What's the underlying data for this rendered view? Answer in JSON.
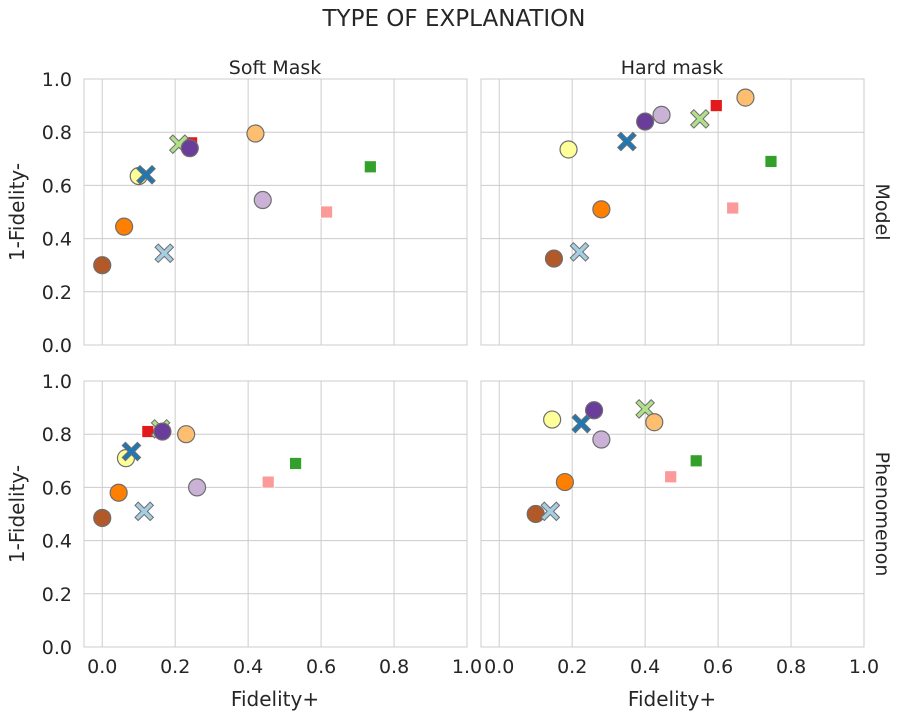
{
  "figure": {
    "title": "TYPE OF EXPLANATION",
    "col_titles": [
      "Soft Mask",
      "Hard mask"
    ],
    "row_titles": [
      "Model",
      "Phenomenon"
    ],
    "xlabel": "Fidelity+",
    "ylabel": "1-Fidelity-"
  },
  "chart_data": {
    "type": "scatter",
    "layout": "2x2 facet grid",
    "grid": true,
    "xlim": [
      0.0,
      1.0
    ],
    "ylim": [
      0.0,
      1.0
    ],
    "xticks": [
      "0.0",
      "0.2",
      "0.4",
      "0.6",
      "0.8",
      "1.0"
    ],
    "yticks": [
      "0.0",
      "0.2",
      "0.4",
      "0.6",
      "0.8",
      "1.0"
    ],
    "colors": {
      "brown": "#b15928",
      "orange": "#ff7f00",
      "light_orange": "#fdbf6f",
      "yellow": "#ffff99",
      "blue": "#1f78b4",
      "light_blue": "#a6cee3",
      "light_green": "#b2df8a",
      "green": "#33a02c",
      "red": "#e31a1c",
      "pink": "#fb9a99",
      "purple": "#6a3d9a",
      "lavender": "#cab2d6"
    },
    "panels": [
      {
        "col": "Soft Mask",
        "row": "Model",
        "points": [
          {
            "x": 0.0,
            "y": 0.3,
            "marker": "circle",
            "color": "brown"
          },
          {
            "x": 0.06,
            "y": 0.445,
            "marker": "circle",
            "color": "orange"
          },
          {
            "x": 0.1,
            "y": 0.635,
            "marker": "circle",
            "color": "yellow"
          },
          {
            "x": 0.12,
            "y": 0.64,
            "marker": "cross",
            "color": "blue"
          },
          {
            "x": 0.17,
            "y": 0.345,
            "marker": "cross",
            "color": "light_blue"
          },
          {
            "x": 0.245,
            "y": 0.76,
            "marker": "square",
            "color": "red"
          },
          {
            "x": 0.21,
            "y": 0.755,
            "marker": "cross",
            "color": "light_green"
          },
          {
            "x": 0.24,
            "y": 0.74,
            "marker": "circle",
            "color": "purple"
          },
          {
            "x": 0.42,
            "y": 0.795,
            "marker": "circle",
            "color": "light_orange"
          },
          {
            "x": 0.44,
            "y": 0.545,
            "marker": "circle",
            "color": "lavender"
          },
          {
            "x": 0.615,
            "y": 0.5,
            "marker": "square",
            "color": "pink"
          },
          {
            "x": 0.735,
            "y": 0.67,
            "marker": "square",
            "color": "green"
          }
        ]
      },
      {
        "col": "Hard mask",
        "row": "Model",
        "points": [
          {
            "x": 0.15,
            "y": 0.325,
            "marker": "circle",
            "color": "brown"
          },
          {
            "x": 0.22,
            "y": 0.35,
            "marker": "cross",
            "color": "light_blue"
          },
          {
            "x": 0.19,
            "y": 0.735,
            "marker": "circle",
            "color": "yellow"
          },
          {
            "x": 0.28,
            "y": 0.51,
            "marker": "circle",
            "color": "orange"
          },
          {
            "x": 0.35,
            "y": 0.765,
            "marker": "cross",
            "color": "blue"
          },
          {
            "x": 0.4,
            "y": 0.84,
            "marker": "circle",
            "color": "purple"
          },
          {
            "x": 0.445,
            "y": 0.865,
            "marker": "circle",
            "color": "lavender"
          },
          {
            "x": 0.55,
            "y": 0.85,
            "marker": "cross",
            "color": "light_green"
          },
          {
            "x": 0.595,
            "y": 0.9,
            "marker": "square",
            "color": "red"
          },
          {
            "x": 0.64,
            "y": 0.515,
            "marker": "square",
            "color": "pink"
          },
          {
            "x": 0.675,
            "y": 0.93,
            "marker": "circle",
            "color": "light_orange"
          },
          {
            "x": 0.745,
            "y": 0.69,
            "marker": "square",
            "color": "green"
          }
        ]
      },
      {
        "col": "Soft Mask",
        "row": "Phenomenon",
        "points": [
          {
            "x": 0.0,
            "y": 0.485,
            "marker": "circle",
            "color": "brown"
          },
          {
            "x": 0.045,
            "y": 0.58,
            "marker": "circle",
            "color": "orange"
          },
          {
            "x": 0.065,
            "y": 0.71,
            "marker": "circle",
            "color": "yellow"
          },
          {
            "x": 0.08,
            "y": 0.735,
            "marker": "cross",
            "color": "blue"
          },
          {
            "x": 0.115,
            "y": 0.51,
            "marker": "cross",
            "color": "light_blue"
          },
          {
            "x": 0.125,
            "y": 0.81,
            "marker": "square",
            "color": "red"
          },
          {
            "x": 0.16,
            "y": 0.82,
            "marker": "cross",
            "color": "light_green"
          },
          {
            "x": 0.165,
            "y": 0.81,
            "marker": "circle",
            "color": "purple"
          },
          {
            "x": 0.23,
            "y": 0.8,
            "marker": "circle",
            "color": "light_orange"
          },
          {
            "x": 0.26,
            "y": 0.6,
            "marker": "circle",
            "color": "lavender"
          },
          {
            "x": 0.455,
            "y": 0.62,
            "marker": "square",
            "color": "pink"
          },
          {
            "x": 0.53,
            "y": 0.69,
            "marker": "square",
            "color": "green"
          }
        ]
      },
      {
        "col": "Hard mask",
        "row": "Phenomenon",
        "points": [
          {
            "x": 0.1,
            "y": 0.5,
            "marker": "circle",
            "color": "brown"
          },
          {
            "x": 0.14,
            "y": 0.51,
            "marker": "cross",
            "color": "light_blue"
          },
          {
            "x": 0.145,
            "y": 0.855,
            "marker": "circle",
            "color": "yellow"
          },
          {
            "x": 0.18,
            "y": 0.62,
            "marker": "circle",
            "color": "orange"
          },
          {
            "x": 0.225,
            "y": 0.84,
            "marker": "cross",
            "color": "blue"
          },
          {
            "x": 0.26,
            "y": 0.89,
            "marker": "circle",
            "color": "purple"
          },
          {
            "x": 0.28,
            "y": 0.78,
            "marker": "circle",
            "color": "lavender"
          },
          {
            "x": 0.4,
            "y": 0.895,
            "marker": "cross",
            "color": "light_green"
          },
          {
            "x": 0.425,
            "y": 0.845,
            "marker": "circle",
            "color": "light_orange"
          },
          {
            "x": 0.47,
            "y": 0.64,
            "marker": "square",
            "color": "pink"
          },
          {
            "x": 0.54,
            "y": 0.7,
            "marker": "square",
            "color": "green"
          }
        ]
      }
    ]
  }
}
